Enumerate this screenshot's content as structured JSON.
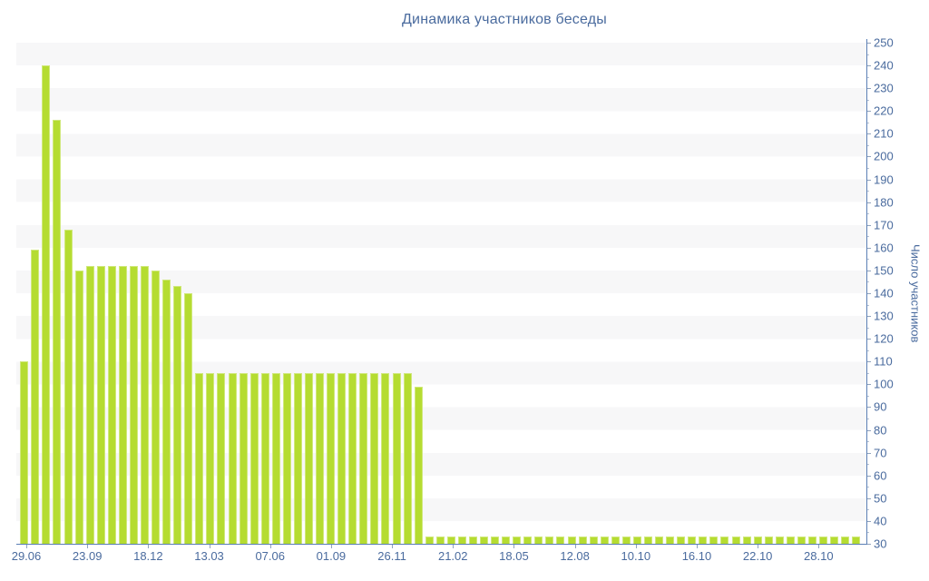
{
  "title": "Динамика участников беседы",
  "colors": {
    "bar_fill": "#b5dc31",
    "bar_edge": "#d0e87c",
    "text_blue": "#4a6b9e",
    "axis_line": "#5b7fb5",
    "major_tick": "#8fa2bd",
    "minor_tick": "#b4c1d4",
    "stripe_gray": "#f7f7f8",
    "background": "#ffffff"
  },
  "chart_data": {
    "type": "bar",
    "title": "Динамика участников беседы",
    "xlabel": "",
    "ylabel": "Число участников",
    "ylim": [
      30,
      250
    ],
    "ytick_major_step": 10,
    "ytick_minor_step": 5,
    "grid": "horizontal-stripes-every-10-units",
    "legend": "none",
    "bar_count": 77,
    "x_tick_labels": [
      "29.06",
      "23.09",
      "18.12",
      "13.03",
      "07.06",
      "01.09",
      "26.11",
      "21.02",
      "18.05",
      "12.08",
      "10.10",
      "16.10",
      "22.10",
      "28.10"
    ],
    "values": [
      110,
      159,
      240,
      216,
      168,
      150,
      152,
      152,
      152,
      152,
      152,
      152,
      150,
      146,
      143,
      140,
      105,
      105,
      105,
      105,
      105,
      105,
      105,
      105,
      105,
      105,
      105,
      105,
      105,
      105,
      105,
      105,
      105,
      105,
      105,
      105,
      99,
      33,
      33,
      33,
      33,
      33,
      33,
      33,
      33,
      33,
      33,
      33,
      33,
      33,
      33,
      33,
      33,
      33,
      33,
      33,
      33,
      33,
      33,
      33,
      33,
      33,
      33,
      33,
      33,
      33,
      33,
      33,
      33,
      33,
      33,
      33,
      33,
      33,
      33,
      33,
      33
    ]
  }
}
